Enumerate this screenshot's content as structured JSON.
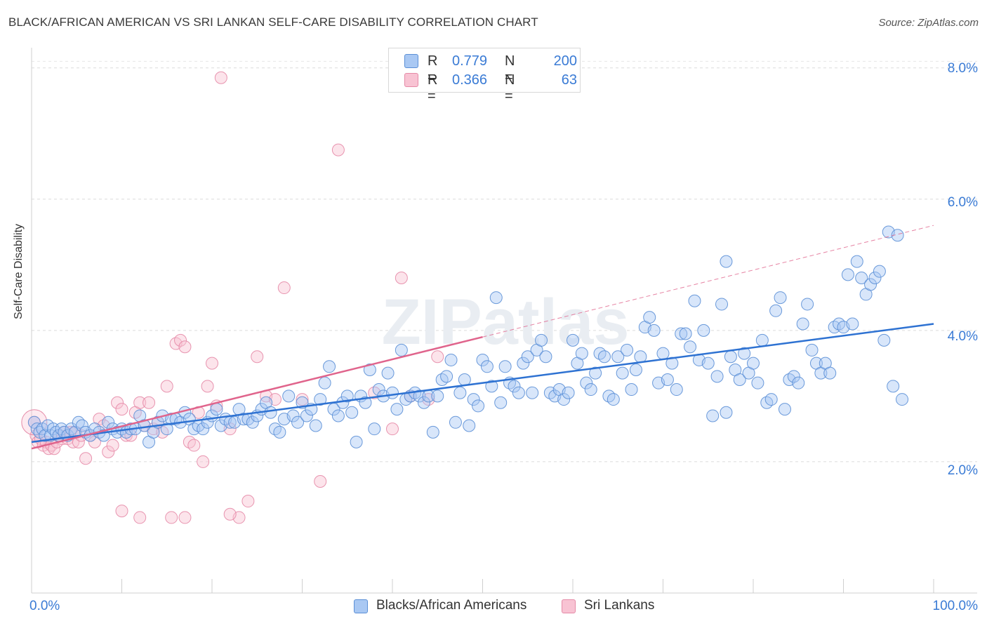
{
  "title": "BLACK/AFRICAN AMERICAN VS SRI LANKAN SELF-CARE DISABILITY CORRELATION CHART",
  "source": "Source: ZipAtlas.com",
  "watermark": "ZIPatlas",
  "legend_top": {
    "rows": [
      {
        "r_label": "R =",
        "r_value": "0.779",
        "n_label": "N =",
        "n_value": "200"
      },
      {
        "r_label": "R =",
        "r_value": "0.366",
        "n_label": "N =",
        "n_value": "63"
      }
    ]
  },
  "legend_bottom": {
    "items": [
      {
        "label": "Blacks/African Americans"
      },
      {
        "label": "Sri Lankans"
      }
    ]
  },
  "colors": {
    "blue_fill": "#a9c8f3",
    "blue_stroke": "#5b8fd6",
    "blue_line": "#2e72d2",
    "pink_fill": "#f8c3d3",
    "pink_stroke": "#e58aa7",
    "pink_line": "#e0648c",
    "tick_text": "#3a7bd5"
  },
  "chart_data": {
    "type": "scatter",
    "title": "BLACK/AFRICAN AMERICAN VS SRI LANKAN SELF-CARE DISABILITY CORRELATION CHART",
    "xlabel": "",
    "ylabel": "Self-Care Disability",
    "xlim": [
      0,
      100
    ],
    "ylim": [
      0,
      8.2
    ],
    "x_tick_labels": [
      "0.0%",
      "100.0%"
    ],
    "y_ticks": [
      2,
      4,
      6,
      8
    ],
    "y_tick_labels": [
      "2.0%",
      "4.0%",
      "6.0%",
      "8.0%"
    ],
    "grid": true,
    "series": [
      {
        "name": "Blacks/African Americans",
        "color": "#a9c8f3",
        "R": 0.779,
        "N": 200,
        "trend": {
          "x": [
            0,
            100
          ],
          "y": [
            2.3,
            4.1
          ]
        },
        "points": [
          [
            0.3,
            2.6
          ],
          [
            0.6,
            2.5
          ],
          [
            0.9,
            2.45
          ],
          [
            1.2,
            2.5
          ],
          [
            1.5,
            2.4
          ],
          [
            1.8,
            2.55
          ],
          [
            2.1,
            2.4
          ],
          [
            2.4,
            2.5
          ],
          [
            2.7,
            2.45
          ],
          [
            3.0,
            2.4
          ],
          [
            3.3,
            2.5
          ],
          [
            3.6,
            2.45
          ],
          [
            4.0,
            2.4
          ],
          [
            4.4,
            2.5
          ],
          [
            4.8,
            2.45
          ],
          [
            5.2,
            2.6
          ],
          [
            5.6,
            2.55
          ],
          [
            6.0,
            2.45
          ],
          [
            6.5,
            2.4
          ],
          [
            7.0,
            2.5
          ],
          [
            7.5,
            2.45
          ],
          [
            8.0,
            2.4
          ],
          [
            8.5,
            2.6
          ],
          [
            9.0,
            2.5
          ],
          [
            9.5,
            2.45
          ],
          [
            10.0,
            2.5
          ],
          [
            10.5,
            2.45
          ],
          [
            11.0,
            2.5
          ],
          [
            11.5,
            2.5
          ],
          [
            12.0,
            2.7
          ],
          [
            12.5,
            2.55
          ],
          [
            13.0,
            2.3
          ],
          [
            13.5,
            2.45
          ],
          [
            14.0,
            2.6
          ],
          [
            14.5,
            2.7
          ],
          [
            15.0,
            2.5
          ],
          [
            15.5,
            2.65
          ],
          [
            16.0,
            2.65
          ],
          [
            16.5,
            2.6
          ],
          [
            17.0,
            2.75
          ],
          [
            17.5,
            2.65
          ],
          [
            18.0,
            2.5
          ],
          [
            18.5,
            2.55
          ],
          [
            19.0,
            2.5
          ],
          [
            19.5,
            2.6
          ],
          [
            20.0,
            2.7
          ],
          [
            20.5,
            2.8
          ],
          [
            21.0,
            2.55
          ],
          [
            21.5,
            2.65
          ],
          [
            22.0,
            2.6
          ],
          [
            22.5,
            2.6
          ],
          [
            23.0,
            2.8
          ],
          [
            23.5,
            2.65
          ],
          [
            24.0,
            2.65
          ],
          [
            24.5,
            2.6
          ],
          [
            25.0,
            2.7
          ],
          [
            25.5,
            2.8
          ],
          [
            26.0,
            2.9
          ],
          [
            26.5,
            2.75
          ],
          [
            27.0,
            2.5
          ],
          [
            27.5,
            2.45
          ],
          [
            28.0,
            2.65
          ],
          [
            28.5,
            3.0
          ],
          [
            29.0,
            2.7
          ],
          [
            29.5,
            2.6
          ],
          [
            30.0,
            2.9
          ],
          [
            30.5,
            2.7
          ],
          [
            31.0,
            2.8
          ],
          [
            31.5,
            2.55
          ],
          [
            32.0,
            2.95
          ],
          [
            32.5,
            3.2
          ],
          [
            33.0,
            3.45
          ],
          [
            33.5,
            2.8
          ],
          [
            34.0,
            2.7
          ],
          [
            34.5,
            2.9
          ],
          [
            35.0,
            3.0
          ],
          [
            35.5,
            2.75
          ],
          [
            36.0,
            2.3
          ],
          [
            36.5,
            3.0
          ],
          [
            37.0,
            2.9
          ],
          [
            37.5,
            3.4
          ],
          [
            38.0,
            2.5
          ],
          [
            38.5,
            3.1
          ],
          [
            39.0,
            3.0
          ],
          [
            39.5,
            3.35
          ],
          [
            40.0,
            3.05
          ],
          [
            40.5,
            2.8
          ],
          [
            41.0,
            3.7
          ],
          [
            41.5,
            2.95
          ],
          [
            42.0,
            3.0
          ],
          [
            42.5,
            3.05
          ],
          [
            43.0,
            3.0
          ],
          [
            43.5,
            2.9
          ],
          [
            44.0,
            3.0
          ],
          [
            44.5,
            2.45
          ],
          [
            45.0,
            3.0
          ],
          [
            45.5,
            3.25
          ],
          [
            46.0,
            3.3
          ],
          [
            46.5,
            3.55
          ],
          [
            47.0,
            2.6
          ],
          [
            47.5,
            3.05
          ],
          [
            48.0,
            3.25
          ],
          [
            48.5,
            2.55
          ],
          [
            49.0,
            2.95
          ],
          [
            49.5,
            2.85
          ],
          [
            50.0,
            3.55
          ],
          [
            50.5,
            3.45
          ],
          [
            51.0,
            3.15
          ],
          [
            51.5,
            4.5
          ],
          [
            52.0,
            2.9
          ],
          [
            52.5,
            3.45
          ],
          [
            53.0,
            3.2
          ],
          [
            53.5,
            3.15
          ],
          [
            54.0,
            3.05
          ],
          [
            54.5,
            3.5
          ],
          [
            55.0,
            3.6
          ],
          [
            55.5,
            3.05
          ],
          [
            56.0,
            3.7
          ],
          [
            56.5,
            3.85
          ],
          [
            57.0,
            3.6
          ],
          [
            57.5,
            3.05
          ],
          [
            58.0,
            3.0
          ],
          [
            58.5,
            3.1
          ],
          [
            59.0,
            2.95
          ],
          [
            59.5,
            3.05
          ],
          [
            60.0,
            3.85
          ],
          [
            60.5,
            3.5
          ],
          [
            61.0,
            3.65
          ],
          [
            61.5,
            3.2
          ],
          [
            62.0,
            3.1
          ],
          [
            62.5,
            3.35
          ],
          [
            63.0,
            3.65
          ],
          [
            63.5,
            3.6
          ],
          [
            64.0,
            3.0
          ],
          [
            64.5,
            2.95
          ],
          [
            65.0,
            3.6
          ],
          [
            65.5,
            3.35
          ],
          [
            66.0,
            3.7
          ],
          [
            66.5,
            3.1
          ],
          [
            67.0,
            3.4
          ],
          [
            67.5,
            3.6
          ],
          [
            68.0,
            4.05
          ],
          [
            68.5,
            4.2
          ],
          [
            69.0,
            4.0
          ],
          [
            69.5,
            3.2
          ],
          [
            70.0,
            3.65
          ],
          [
            70.5,
            3.25
          ],
          [
            71.0,
            3.5
          ],
          [
            71.5,
            3.1
          ],
          [
            72.0,
            3.95
          ],
          [
            72.5,
            3.95
          ],
          [
            73.0,
            3.75
          ],
          [
            73.5,
            4.45
          ],
          [
            74.0,
            3.55
          ],
          [
            74.5,
            4.0
          ],
          [
            75.0,
            3.5
          ],
          [
            75.5,
            2.7
          ],
          [
            76.0,
            3.3
          ],
          [
            76.5,
            4.4
          ],
          [
            77.0,
            2.75
          ],
          [
            77.5,
            3.6
          ],
          [
            78.0,
            3.4
          ],
          [
            78.5,
            3.25
          ],
          [
            79.0,
            3.65
          ],
          [
            79.5,
            3.35
          ],
          [
            80.0,
            3.5
          ],
          [
            80.5,
            3.2
          ],
          [
            81.0,
            3.85
          ],
          [
            81.5,
            2.9
          ],
          [
            82.0,
            2.95
          ],
          [
            82.5,
            4.3
          ],
          [
            83.0,
            4.5
          ],
          [
            83.5,
            2.8
          ],
          [
            84.0,
            3.25
          ],
          [
            84.5,
            3.3
          ],
          [
            85.0,
            3.2
          ],
          [
            85.5,
            4.1
          ],
          [
            86.0,
            4.4
          ],
          [
            86.5,
            3.7
          ],
          [
            87.0,
            3.5
          ],
          [
            87.5,
            3.35
          ],
          [
            88.0,
            3.5
          ],
          [
            88.5,
            3.35
          ],
          [
            89.0,
            4.05
          ],
          [
            89.5,
            4.1
          ],
          [
            90.0,
            4.05
          ],
          [
            90.5,
            4.85
          ],
          [
            91.0,
            4.1
          ],
          [
            91.5,
            5.05
          ],
          [
            92.0,
            4.8
          ],
          [
            92.5,
            4.55
          ],
          [
            93.0,
            4.7
          ],
          [
            93.5,
            4.8
          ],
          [
            94.0,
            4.9
          ],
          [
            94.5,
            3.85
          ],
          [
            95.0,
            5.5
          ],
          [
            95.5,
            3.15
          ],
          [
            96.0,
            5.45
          ],
          [
            96.5,
            2.95
          ],
          [
            77.0,
            5.05
          ]
        ]
      },
      {
        "name": "Sri Lankans",
        "color": "#f8c3d3",
        "R": 0.366,
        "N": 63,
        "trend": {
          "x": [
            0,
            50
          ],
          "y": [
            2.2,
            3.9
          ]
        },
        "trend_extension": {
          "x": [
            50,
            100
          ],
          "y": [
            3.9,
            5.6
          ]
        },
        "points": [
          [
            0.3,
            2.6
          ],
          [
            0.5,
            2.4
          ],
          [
            0.7,
            2.3
          ],
          [
            1.0,
            2.35
          ],
          [
            1.3,
            2.25
          ],
          [
            1.6,
            2.3
          ],
          [
            1.9,
            2.2
          ],
          [
            2.2,
            2.25
          ],
          [
            2.5,
            2.2
          ],
          [
            2.8,
            2.3
          ],
          [
            3.1,
            2.4
          ],
          [
            3.4,
            2.35
          ],
          [
            3.7,
            2.45
          ],
          [
            4.0,
            2.35
          ],
          [
            4.3,
            2.45
          ],
          [
            4.6,
            2.3
          ],
          [
            4.9,
            2.45
          ],
          [
            5.2,
            2.3
          ],
          [
            5.5,
            2.4
          ],
          [
            6.0,
            2.05
          ],
          [
            6.5,
            2.4
          ],
          [
            7.0,
            2.3
          ],
          [
            7.5,
            2.65
          ],
          [
            8.0,
            2.55
          ],
          [
            8.5,
            2.15
          ],
          [
            9.0,
            2.25
          ],
          [
            9.5,
            2.9
          ],
          [
            10.0,
            2.8
          ],
          [
            10.5,
            2.4
          ],
          [
            11.0,
            2.4
          ],
          [
            11.5,
            2.75
          ],
          [
            12.0,
            2.9
          ],
          [
            12.5,
            2.55
          ],
          [
            13.0,
            2.9
          ],
          [
            13.5,
            2.5
          ],
          [
            14.0,
            2.6
          ],
          [
            14.5,
            2.45
          ],
          [
            15.0,
            3.15
          ],
          [
            15.5,
            1.15
          ],
          [
            16.0,
            3.8
          ],
          [
            16.5,
            3.85
          ],
          [
            17.0,
            3.75
          ],
          [
            17.5,
            2.3
          ],
          [
            18.0,
            2.25
          ],
          [
            18.5,
            2.75
          ],
          [
            19.0,
            2.0
          ],
          [
            19.5,
            3.15
          ],
          [
            20.0,
            3.5
          ],
          [
            20.5,
            2.85
          ],
          [
            21.0,
            7.85
          ],
          [
            22.0,
            2.5
          ],
          [
            23.0,
            1.15
          ],
          [
            24.0,
            1.4
          ],
          [
            25.0,
            3.6
          ],
          [
            26.0,
            3.0
          ],
          [
            27.0,
            2.95
          ],
          [
            28.0,
            4.65
          ],
          [
            30.0,
            2.95
          ],
          [
            32.0,
            1.7
          ],
          [
            34.0,
            6.75
          ],
          [
            38.0,
            3.05
          ],
          [
            40.0,
            2.5
          ],
          [
            41.0,
            4.8
          ],
          [
            42.0,
            3.0
          ],
          [
            44.0,
            2.95
          ],
          [
            45.0,
            3.6
          ],
          [
            10.0,
            1.25
          ],
          [
            12.0,
            1.15
          ],
          [
            17.0,
            1.15
          ],
          [
            22.0,
            1.2
          ]
        ]
      }
    ]
  },
  "axis": {
    "y_label": "Self-Care Disability",
    "x_min_label": "0.0%",
    "x_max_label": "100.0%",
    "y_tick_labels": [
      "8.0%",
      "6.0%",
      "4.0%",
      "2.0%"
    ]
  }
}
